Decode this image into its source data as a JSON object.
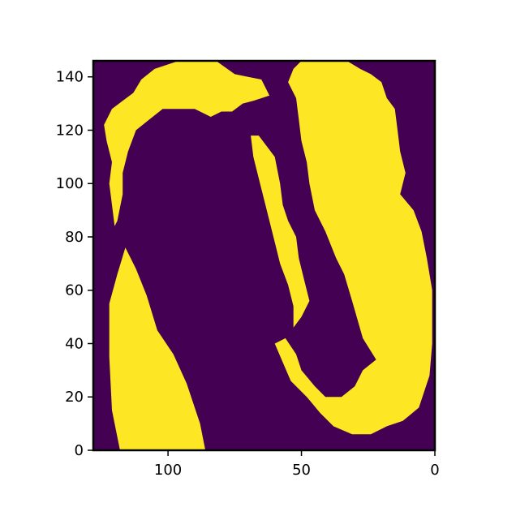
{
  "chart_data": {
    "type": "heatmap",
    "title": "",
    "xlabel": "",
    "ylabel": "",
    "xlim": [
      128,
      0
    ],
    "ylim": [
      0,
      146
    ],
    "x_axis_inverted": true,
    "xticks": [
      "100",
      "50",
      "0"
    ],
    "xtick_values": [
      100,
      50,
      0
    ],
    "yticks": [
      "0",
      "20",
      "40",
      "60",
      "80",
      "100",
      "120",
      "140"
    ],
    "ytick_values": [
      0,
      20,
      40,
      60,
      80,
      100,
      120,
      140
    ],
    "colormap": "viridis",
    "values": [
      0,
      1
    ],
    "colors": {
      "0": "#440154",
      "1": "#fde725"
    },
    "description_of_regions": {
      "left_yellow_mass": [
        [
          118,
          0
        ],
        [
          86,
          0
        ],
        [
          88,
          10
        ],
        [
          93,
          25
        ],
        [
          98,
          36
        ],
        [
          104,
          45
        ],
        [
          108,
          58
        ],
        [
          112,
          68
        ],
        [
          116,
          76
        ],
        [
          119,
          66
        ],
        [
          122,
          55
        ],
        [
          122,
          35
        ],
        [
          121,
          15
        ]
      ],
      "left_yellow_thin_band": [
        [
          120,
          84
        ],
        [
          121,
          92
        ],
        [
          122,
          100
        ],
        [
          121,
          108
        ],
        [
          123,
          116
        ],
        [
          124,
          122
        ],
        [
          121,
          128
        ],
        [
          117,
          131
        ],
        [
          113,
          134
        ],
        [
          110,
          139
        ],
        [
          105,
          143
        ],
        [
          96,
          146
        ],
        [
          82,
          146
        ],
        [
          75,
          141
        ],
        [
          70,
          140
        ],
        [
          65,
          139
        ],
        [
          62,
          133
        ],
        [
          68,
          131
        ],
        [
          72,
          130
        ],
        [
          76,
          127
        ],
        [
          80,
          127
        ],
        [
          84,
          125
        ],
        [
          90,
          128
        ],
        [
          96,
          128
        ],
        [
          102,
          128
        ],
        [
          107,
          124
        ],
        [
          112,
          120
        ],
        [
          115,
          112
        ],
        [
          117,
          104
        ],
        [
          117,
          96
        ],
        [
          119,
          86
        ]
      ],
      "right_yellow_peninsula": [
        [
          50,
          146
        ],
        [
          33,
          146
        ],
        [
          28,
          143
        ],
        [
          24,
          141
        ],
        [
          20,
          138
        ],
        [
          18,
          132
        ],
        [
          15,
          128
        ],
        [
          14,
          120
        ],
        [
          13,
          112
        ],
        [
          11,
          104
        ],
        [
          13,
          96
        ],
        [
          8,
          90
        ],
        [
          5,
          82
        ],
        [
          3,
          72
        ],
        [
          1,
          60
        ],
        [
          1,
          40
        ],
        [
          2,
          28
        ],
        [
          6,
          16
        ],
        [
          12,
          11
        ],
        [
          18,
          9
        ],
        [
          24,
          6
        ],
        [
          31,
          6
        ],
        [
          38,
          9
        ],
        [
          43,
          14
        ],
        [
          48,
          20
        ],
        [
          54,
          26
        ],
        [
          57,
          33
        ],
        [
          60,
          40
        ],
        [
          56,
          42
        ],
        [
          52,
          36
        ],
        [
          50,
          30
        ],
        [
          45,
          24
        ],
        [
          41,
          20
        ],
        [
          35,
          20
        ],
        [
          30,
          24
        ],
        [
          27,
          30
        ],
        [
          22,
          34
        ],
        [
          27,
          42
        ],
        [
          31,
          56
        ],
        [
          34,
          66
        ],
        [
          37,
          72
        ],
        [
          41,
          82
        ],
        [
          45,
          90
        ],
        [
          47,
          100
        ],
        [
          48,
          108
        ],
        [
          50,
          116
        ],
        [
          51,
          124
        ],
        [
          52,
          132
        ],
        [
          55,
          138
        ],
        [
          53,
          143
        ]
      ],
      "central_yellow_strip": [
        [
          66,
          118
        ],
        [
          60,
          110
        ],
        [
          58,
          100
        ],
        [
          57,
          92
        ],
        [
          55,
          86
        ],
        [
          52,
          80
        ],
        [
          51,
          72
        ],
        [
          49,
          64
        ],
        [
          47,
          56
        ],
        [
          50,
          50
        ],
        [
          53,
          46
        ],
        [
          53,
          54
        ],
        [
          55,
          62
        ],
        [
          58,
          70
        ],
        [
          60,
          78
        ],
        [
          62,
          86
        ],
        [
          64,
          94
        ],
        [
          66,
          102
        ],
        [
          68,
          110
        ],
        [
          69,
          118
        ]
      ]
    }
  }
}
